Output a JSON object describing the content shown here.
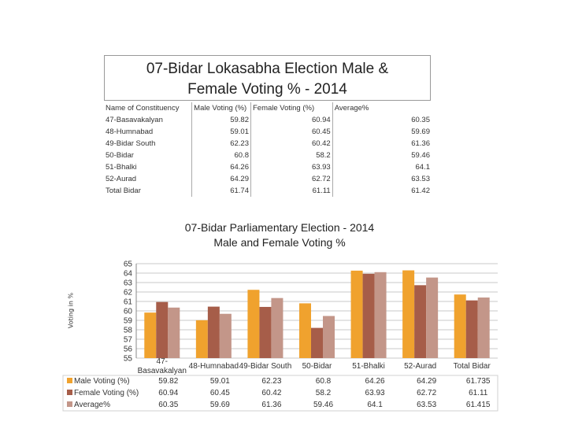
{
  "title_box": {
    "line1": "07-Bidar Lokasabha Election Male &",
    "line2": "Female Voting % - 2014"
  },
  "summary_table": {
    "headers": [
      "Name of Constituency",
      "Male Voting (%)",
      "Female Voting (%)",
      "Average%"
    ],
    "rows": [
      [
        "47-Basavakalyan",
        "59.82",
        "60.94",
        "60.35"
      ],
      [
        "48-Humnabad",
        "59.01",
        "60.45",
        "59.69"
      ],
      [
        "49-Bidar South",
        "62.23",
        "60.42",
        "61.36"
      ],
      [
        "50-Bidar",
        "60.8",
        "58.2",
        "59.46"
      ],
      [
        "51-Bhalki",
        "64.26",
        "63.93",
        "64.1"
      ],
      [
        "52-Aurad",
        "64.29",
        "62.72",
        "63.53"
      ],
      [
        "Total Bidar",
        "61.74",
        "61.11",
        "61.42"
      ]
    ]
  },
  "chart_data": {
    "type": "bar",
    "title": "07-Bidar Parliamentary Election - 2014",
    "subtitle": "Male and Female Voting %",
    "xlabel": "",
    "ylabel": "Voting in %",
    "ylim": [
      55,
      65
    ],
    "yticks": [
      65,
      64,
      63,
      62,
      61,
      60,
      59,
      58,
      57,
      56,
      55
    ],
    "grid": true,
    "legend_position": "bottom-left (data table)",
    "categories": [
      "47-Basavakalyan",
      "48-Humnabad",
      "49-Bidar South",
      "50-Bidar",
      "51-Bhalki",
      "52-Aurad",
      "Total Bidar"
    ],
    "category_labels": [
      [
        "47-",
        "Basavakalyan"
      ],
      [
        "48-Humnabad"
      ],
      [
        "49-Bidar South"
      ],
      [
        "50-Bidar"
      ],
      [
        "51-Bhalki"
      ],
      [
        "52-Aurad"
      ],
      [
        "Total Bidar"
      ]
    ],
    "series": [
      {
        "name": "Male Voting (%)",
        "color": "#f0a22e",
        "values": [
          59.82,
          59.01,
          62.23,
          60.8,
          64.26,
          64.29,
          61.735
        ],
        "labels": [
          "59.82",
          "59.01",
          "62.23",
          "60.8",
          "64.26",
          "64.29",
          "61.735"
        ]
      },
      {
        "name": "Female Voting (%)",
        "color": "#a65d49",
        "values": [
          60.94,
          60.45,
          60.42,
          58.2,
          63.93,
          62.72,
          61.11
        ],
        "labels": [
          "60.94",
          "60.45",
          "60.42",
          "58.2",
          "63.93",
          "62.72",
          "61.11"
        ]
      },
      {
        "name": "Average%",
        "color": "#c39689",
        "values": [
          60.35,
          59.69,
          61.36,
          59.46,
          64.1,
          63.53,
          61.415
        ],
        "labels": [
          "60.35",
          "59.69",
          "61.36",
          "59.46",
          "64.1",
          "63.53",
          "61.415"
        ]
      }
    ]
  }
}
